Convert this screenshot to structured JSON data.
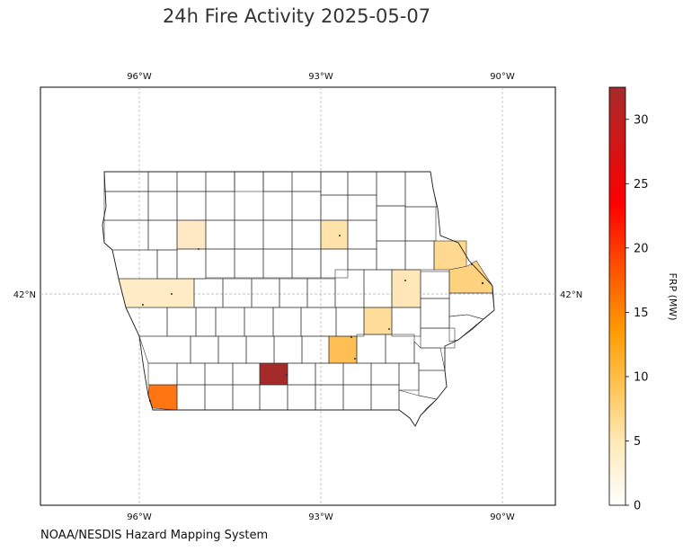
{
  "title": "24h Fire Activity 2025-05-07",
  "source": "NOAA/NESDIS Hazard Mapping System",
  "map": {
    "lon_ticks": [
      "96°W",
      "93°W",
      "90°W"
    ],
    "lat_ticks": [
      "42°N"
    ]
  },
  "colorbar": {
    "label": "FRP (MW)",
    "ticks": [
      "0",
      "5",
      "10",
      "15",
      "20",
      "25",
      "30"
    ],
    "min": 0,
    "max": 32.5,
    "colormap": [
      "#ffffff",
      "#ffe9b8",
      "#ffc04a",
      "#ff9a00",
      "#ff4a00",
      "#ff0000",
      "#a52a2a"
    ]
  },
  "colors": {
    "border": "#000000",
    "grid": "#b0b0b0",
    "nofire": "#ffffff"
  }
}
